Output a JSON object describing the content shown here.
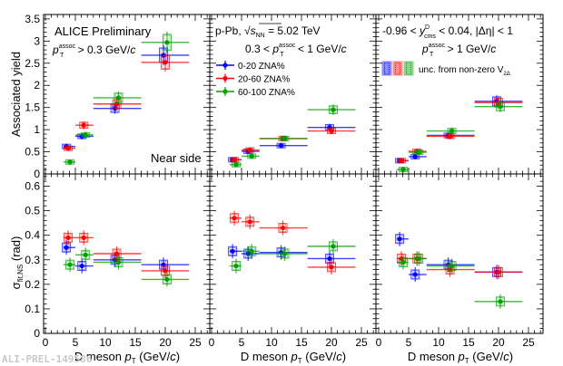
{
  "chart_data": {
    "type": "scatter",
    "x_bin_edges": [
      [
        3,
        5
      ],
      [
        5,
        8
      ],
      [
        8,
        16
      ],
      [
        16,
        24
      ]
    ],
    "x_centers": [
      3.8,
      6.4,
      11.9,
      20.0
    ],
    "xlabel": "D meson p_T (GeV/c)",
    "xlim": [
      0,
      27.5
    ],
    "x_ticks": [
      "0",
      "5",
      "10",
      "15",
      "20",
      "25"
    ],
    "legend": {
      "entries": [
        "0-20 ZNA%",
        "20-60 ZNA%",
        "60-100 ZNA%"
      ],
      "box_note": "unc. from non-zero V2Δ",
      "placement": "middle panel, top-left"
    },
    "colors": {
      "0-20 ZNA%": "#0000ff",
      "20-60 ZNA%": "#ff0000",
      "60-100 ZNA%": "#00a000"
    },
    "rows": [
      {
        "ylabel": "Associated yield",
        "ylim": [
          0,
          3.6
        ],
        "y_ticks": [
          "0",
          "0.5",
          "1",
          "1.5",
          "2",
          "2.5",
          "3",
          "3.5"
        ],
        "panels": [
          {
            "series": [
              {
                "name": "0-20 ZNA%",
                "values": [
                  0.62,
                  0.85,
                  1.48,
                  2.68
                ]
              },
              {
                "name": "20-60 ZNA%",
                "values": [
                  0.58,
                  1.1,
                  1.58,
                  2.52
                ]
              },
              {
                "name": "60-100 ZNA%",
                "values": [
                  0.27,
                  0.88,
                  1.72,
                  2.97
                ]
              }
            ]
          },
          {
            "series": [
              {
                "name": "0-20 ZNA%",
                "values": [
                  0.32,
                  0.51,
                  0.64,
                  1.05
                ]
              },
              {
                "name": "20-60 ZNA%",
                "values": [
                  0.32,
                  0.54,
                  0.8,
                  0.97
                ]
              },
              {
                "name": "60-100 ZNA%",
                "values": [
                  0.21,
                  0.4,
                  0.8,
                  1.45
                ]
              }
            ]
          },
          {
            "series": [
              {
                "name": "0-20 ZNA%",
                "values": [
                  0.3,
                  0.39,
                  0.87,
                  1.64
                ]
              },
              {
                "name": "20-60 ZNA%",
                "values": [
                  0.3,
                  0.51,
                  0.85,
                  1.61
                ]
              },
              {
                "name": "60-100 ZNA%",
                "values": [
                  0.1,
                  0.49,
                  0.97,
                  1.52
                ]
              }
            ]
          }
        ]
      },
      {
        "ylabel": "σ_fit,NS (rad)",
        "ylim": [
          0,
          0.65
        ],
        "y_ticks": [
          "0",
          "0.1",
          "0.2",
          "0.3",
          "0.4",
          "0.5",
          "0.6"
        ],
        "panels": [
          {
            "series": [
              {
                "name": "0-20 ZNA%",
                "values": [
                  0.35,
                  0.275,
                  0.3,
                  0.28
                ]
              },
              {
                "name": "20-60 ZNA%",
                "values": [
                  0.39,
                  0.39,
                  0.325,
                  0.255
                ]
              },
              {
                "name": "60-100 ZNA%",
                "values": [
                  0.28,
                  0.32,
                  0.29,
                  0.22
                ]
              }
            ]
          },
          {
            "series": [
              {
                "name": "0-20 ZNA%",
                "values": [
                  0.335,
                  0.325,
                  0.33,
                  0.305
                ]
              },
              {
                "name": "20-60 ZNA%",
                "values": [
                  0.47,
                  0.455,
                  0.43,
                  0.27
                ]
              },
              {
                "name": "60-100 ZNA%",
                "values": [
                  0.275,
                  0.335,
                  0.325,
                  0.355
                ]
              }
            ]
          },
          {
            "series": [
              {
                "name": "0-20 ZNA%",
                "values": [
                  0.385,
                  0.24,
                  0.28,
                  0.25
                ]
              },
              {
                "name": "20-60 ZNA%",
                "values": [
                  0.305,
                  0.305,
                  0.26,
                  0.25
                ]
              },
              {
                "name": "60-100 ZNA%",
                "values": [
                  0.29,
                  0.305,
                  0.275,
                  0.13
                ]
              }
            ]
          }
        ]
      }
    ]
  },
  "annotations": {
    "alice": "ALICE Preliminary",
    "left_cut_p": "p",
    "left_cut_sub": "T",
    "left_cut_sup": "assoc",
    "left_cut_rest": " > 0.3 GeV/",
    "unit_c": "c",
    "near_side": "Near side",
    "system": "p-Pb, ",
    "sqrt_s": "s",
    "sqrt_sub": "NN",
    "energy": " = 5.02 TeV",
    "mid_cut_lo": "0.3 < ",
    "mid_cut_rest": " < 1 GeV/",
    "rap_lo": "-0.96 < ",
    "rap_y": "y",
    "rap_sup": "D",
    "rap_sub": "cms",
    "rap_rest": " < 0.04, |Δη| < 1",
    "right_cut_rest": " > 1 GeV/",
    "box_note": "unc. from non-zero V",
    "box_note_sub": "2Δ",
    "ylabel_top": "Associated yield",
    "ylabel_bottom_sigma": "σ",
    "ylabel_bottom_sub": "fit,NS",
    "ylabel_bottom_rest": " (rad)",
    "xlabel_pre": "D meson ",
    "xlabel_p": "p",
    "xlabel_sub": "T",
    "xlabel_rest": " (GeV/",
    "xlabel_c": "c",
    "xlabel_close": ")",
    "watermark": "ALI-PREL-149586"
  }
}
